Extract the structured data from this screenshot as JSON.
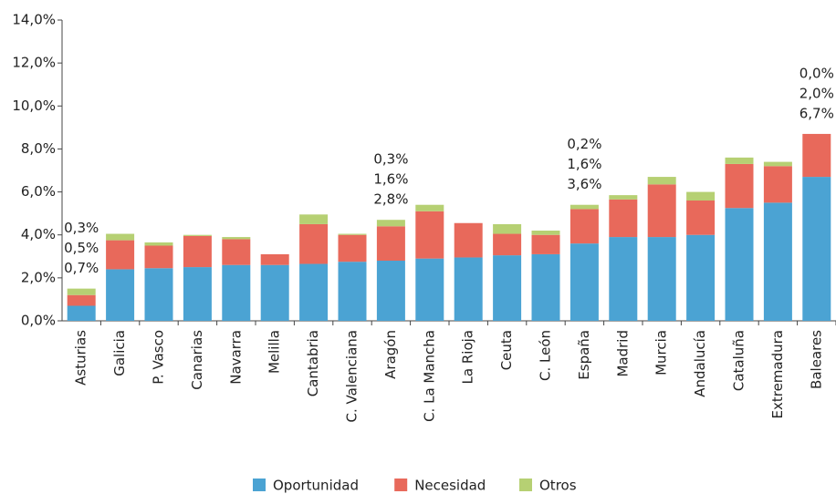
{
  "chart_data": {
    "type": "stacked_bar",
    "categories": [
      "Asturias",
      "Galicia",
      "P. Vasco",
      "Canarias",
      "Navarra",
      "Melilla",
      "Cantabria",
      "C. Valenciana",
      "Aragón",
      "C. La Mancha",
      "La Rioja",
      "Ceuta",
      "C. León",
      "España",
      "Madrid",
      "Murcia",
      "Andalucía",
      "Cataluña",
      "Extremadura",
      "Baleares"
    ],
    "series": [
      {
        "name": "Oportunidad",
        "color": "#4ba3d3",
        "values": [
          0.7,
          2.4,
          2.45,
          2.5,
          2.6,
          2.6,
          2.65,
          2.75,
          2.8,
          2.9,
          2.95,
          3.05,
          3.1,
          3.6,
          3.9,
          3.9,
          4.0,
          5.25,
          5.5,
          6.7
        ],
        "value_labels": [
          "0,7%",
          null,
          null,
          null,
          null,
          null,
          null,
          null,
          "2,8%",
          null,
          null,
          null,
          null,
          "3,6%",
          null,
          null,
          null,
          null,
          null,
          "6,7%"
        ]
      },
      {
        "name": "Necesidad",
        "color": "#e8695b",
        "values": [
          0.5,
          1.35,
          1.05,
          1.45,
          1.2,
          0.5,
          1.85,
          1.25,
          1.6,
          2.2,
          1.6,
          1.0,
          0.9,
          1.6,
          1.75,
          2.45,
          1.6,
          2.05,
          1.7,
          2.0
        ],
        "value_labels": [
          "0,5%",
          null,
          null,
          null,
          null,
          null,
          null,
          null,
          "1,6%",
          null,
          null,
          null,
          null,
          "1,6%",
          null,
          null,
          null,
          null,
          null,
          "2,0%"
        ]
      },
      {
        "name": "Otros",
        "color": "#b6d073",
        "values": [
          0.3,
          0.3,
          0.15,
          0.05,
          0.1,
          0.0,
          0.45,
          0.05,
          0.3,
          0.3,
          0.0,
          0.45,
          0.2,
          0.2,
          0.2,
          0.35,
          0.4,
          0.3,
          0.2,
          0.0
        ],
        "value_labels": [
          "0,3%",
          null,
          null,
          null,
          null,
          null,
          null,
          null,
          "0,3%",
          null,
          null,
          null,
          null,
          "0,2%",
          null,
          null,
          null,
          null,
          null,
          "0,0%"
        ]
      }
    ],
    "ylim": [
      0,
      14
    ],
    "yticks": [
      {
        "value": 0,
        "label": "0,0%"
      },
      {
        "value": 2,
        "label": "2,0%"
      },
      {
        "value": 4,
        "label": "4,0%"
      },
      {
        "value": 6,
        "label": "6,0%"
      },
      {
        "value": 8,
        "label": "8,0%"
      },
      {
        "value": 10,
        "label": "10,0%"
      },
      {
        "value": 12,
        "label": "12,0%"
      },
      {
        "value": 14,
        "label": "14,0%"
      }
    ],
    "grid": false
  }
}
